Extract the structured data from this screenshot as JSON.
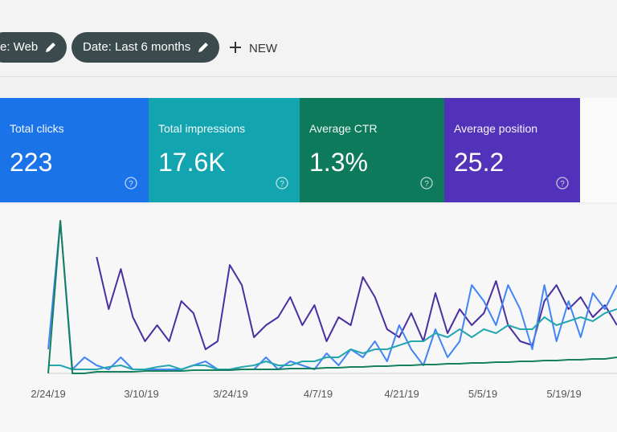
{
  "filters": [
    {
      "label": "e: Web"
    },
    {
      "label": "Date: Last 6 months"
    }
  ],
  "new_button": "NEW",
  "metrics": [
    {
      "title": "Total clicks",
      "value": "223",
      "color": "#1a73e8"
    },
    {
      "title": "Total impressions",
      "value": "17.6K",
      "color": "#12a4af"
    },
    {
      "title": "Average CTR",
      "value": "1.3%",
      "color": "#0d7a5c"
    },
    {
      "title": "Average position",
      "value": "25.2",
      "color": "#5232b8"
    }
  ],
  "chart_data": {
    "type": "line",
    "x_labels": [
      "2/24/19",
      "3/10/19",
      "3/24/19",
      "4/7/19",
      "4/21/19",
      "5/5/19",
      "5/19/19"
    ],
    "series": [
      {
        "name": "Average position",
        "color": "#4a2fa0",
        "values": [
          null,
          null,
          null,
          null,
          145,
          80,
          130,
          70,
          40,
          60,
          40,
          90,
          75,
          30,
          40,
          135,
          110,
          45,
          60,
          70,
          95,
          60,
          85,
          40,
          70,
          60,
          120,
          95,
          55,
          45,
          75,
          40,
          100,
          50,
          80,
          60,
          75,
          115,
          60,
          40,
          35,
          90,
          110,
          80,
          95,
          70,
          85,
          60
        ]
      },
      {
        "name": "Total clicks",
        "color": "#4285f4",
        "values": [
          30,
          190,
          5,
          20,
          10,
          5,
          20,
          5,
          5,
          5,
          5,
          5,
          10,
          15,
          5,
          5,
          5,
          5,
          20,
          5,
          15,
          10,
          5,
          25,
          10,
          30,
          20,
          40,
          15,
          60,
          30,
          10,
          55,
          20,
          40,
          110,
          90,
          60,
          110,
          80,
          30,
          110,
          40,
          90,
          45,
          100,
          80,
          110
        ]
      },
      {
        "name": "Total impressions",
        "color": "#26a7b0",
        "values": [
          10,
          10,
          5,
          5,
          5,
          8,
          10,
          5,
          5,
          8,
          10,
          5,
          10,
          10,
          5,
          5,
          8,
          10,
          15,
          10,
          10,
          15,
          15,
          20,
          20,
          30,
          25,
          30,
          30,
          35,
          40,
          40,
          50,
          45,
          55,
          45,
          55,
          50,
          60,
          55,
          55,
          70,
          60,
          65,
          70,
          65,
          75,
          80
        ]
      },
      {
        "name": "Average CTR",
        "color": "#17805e",
        "values": [
          0,
          190,
          0,
          0,
          2,
          2,
          2,
          2,
          3,
          3,
          3,
          3,
          4,
          4,
          4,
          4,
          5,
          5,
          5,
          5,
          6,
          6,
          6,
          7,
          7,
          8,
          8,
          9,
          9,
          10,
          10,
          11,
          11,
          12,
          12,
          13,
          13,
          14,
          14,
          15,
          15,
          16,
          16,
          17,
          17,
          18,
          18,
          20
        ]
      }
    ]
  }
}
